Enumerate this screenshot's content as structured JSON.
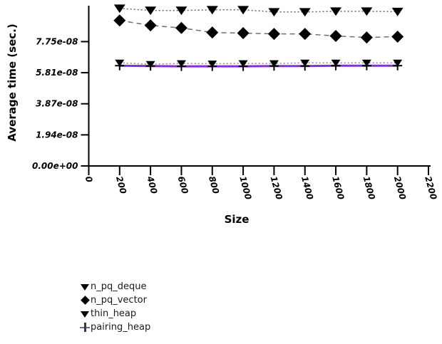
{
  "page": {
    "background": "#ffffff"
  },
  "chart_data": {
    "type": "line",
    "title": "",
    "xlabel": "Size",
    "ylabel": "Average time (sec.)",
    "x": [
      200,
      400,
      600,
      800,
      1000,
      1200,
      1400,
      1600,
      1800,
      2000
    ],
    "xlim": [
      0,
      2200
    ],
    "ylim": [
      0,
      9.9e-08
    ],
    "xticks": [
      0,
      200,
      400,
      600,
      800,
      1000,
      1200,
      1400,
      1600,
      1800,
      2000,
      2200
    ],
    "xtick_labels": [
      "0",
      "200",
      "400",
      "600",
      "800",
      "1000",
      "1200",
      "1400",
      "1600",
      "1800",
      "2000",
      "2200"
    ],
    "yticks": [
      0,
      1.9375e-08,
      3.875e-08,
      5.8125e-08,
      7.75e-08
    ],
    "ytick_labels": [
      "0.00e+00",
      "1.94e-08",
      "3.87e-08",
      "5.81e-08",
      "7.75e-08"
    ],
    "grid": false,
    "legend_position": "bottom-left",
    "axis_color": "#000000",
    "tick_label_style": "bold-italic",
    "series": [
      {
        "name": "n_pq_deque",
        "marker": "triangle-down",
        "marker_color": "#000000",
        "marker_size": 16,
        "line_style": "dotted",
        "line_color": "#666666",
        "line_width": 1.5,
        "values": [
          9.82e-08,
          9.69e-08,
          9.69e-08,
          9.73e-08,
          9.73e-08,
          9.6e-08,
          9.6e-08,
          9.64e-08,
          9.64e-08,
          9.62e-08
        ]
      },
      {
        "name": "n_pq_vector",
        "marker": "diamond",
        "marker_color": "#000000",
        "marker_size": 17,
        "line_style": "dashed",
        "line_color": "#707070",
        "line_width": 1.5,
        "values": [
          9.07e-08,
          8.76e-08,
          8.6e-08,
          8.32e-08,
          8.28e-08,
          8.23e-08,
          8.23e-08,
          8.1e-08,
          8.01e-08,
          8.06e-08
        ]
      },
      {
        "name": "thin_heap",
        "marker": "triangle-down",
        "marker_color": "#000000",
        "marker_size": 13,
        "line_style": "dotted",
        "line_color": "#888888",
        "line_width": 1.5,
        "values": [
          6.43e-08,
          6.34e-08,
          6.39e-08,
          6.37e-08,
          6.39e-08,
          6.39e-08,
          6.43e-08,
          6.43e-08,
          6.43e-08,
          6.43e-08
        ]
      },
      {
        "name": "pairing_heap",
        "marker": "plus",
        "marker_color": "#000000",
        "marker_size": 13,
        "line_style": "solid",
        "line_color": "#8a2be2",
        "line_width": 3,
        "values": [
          6.25e-08,
          6.23e-08,
          6.21e-08,
          6.21e-08,
          6.21e-08,
          6.23e-08,
          6.23e-08,
          6.25e-08,
          6.25e-08,
          6.25e-08
        ]
      }
    ]
  }
}
